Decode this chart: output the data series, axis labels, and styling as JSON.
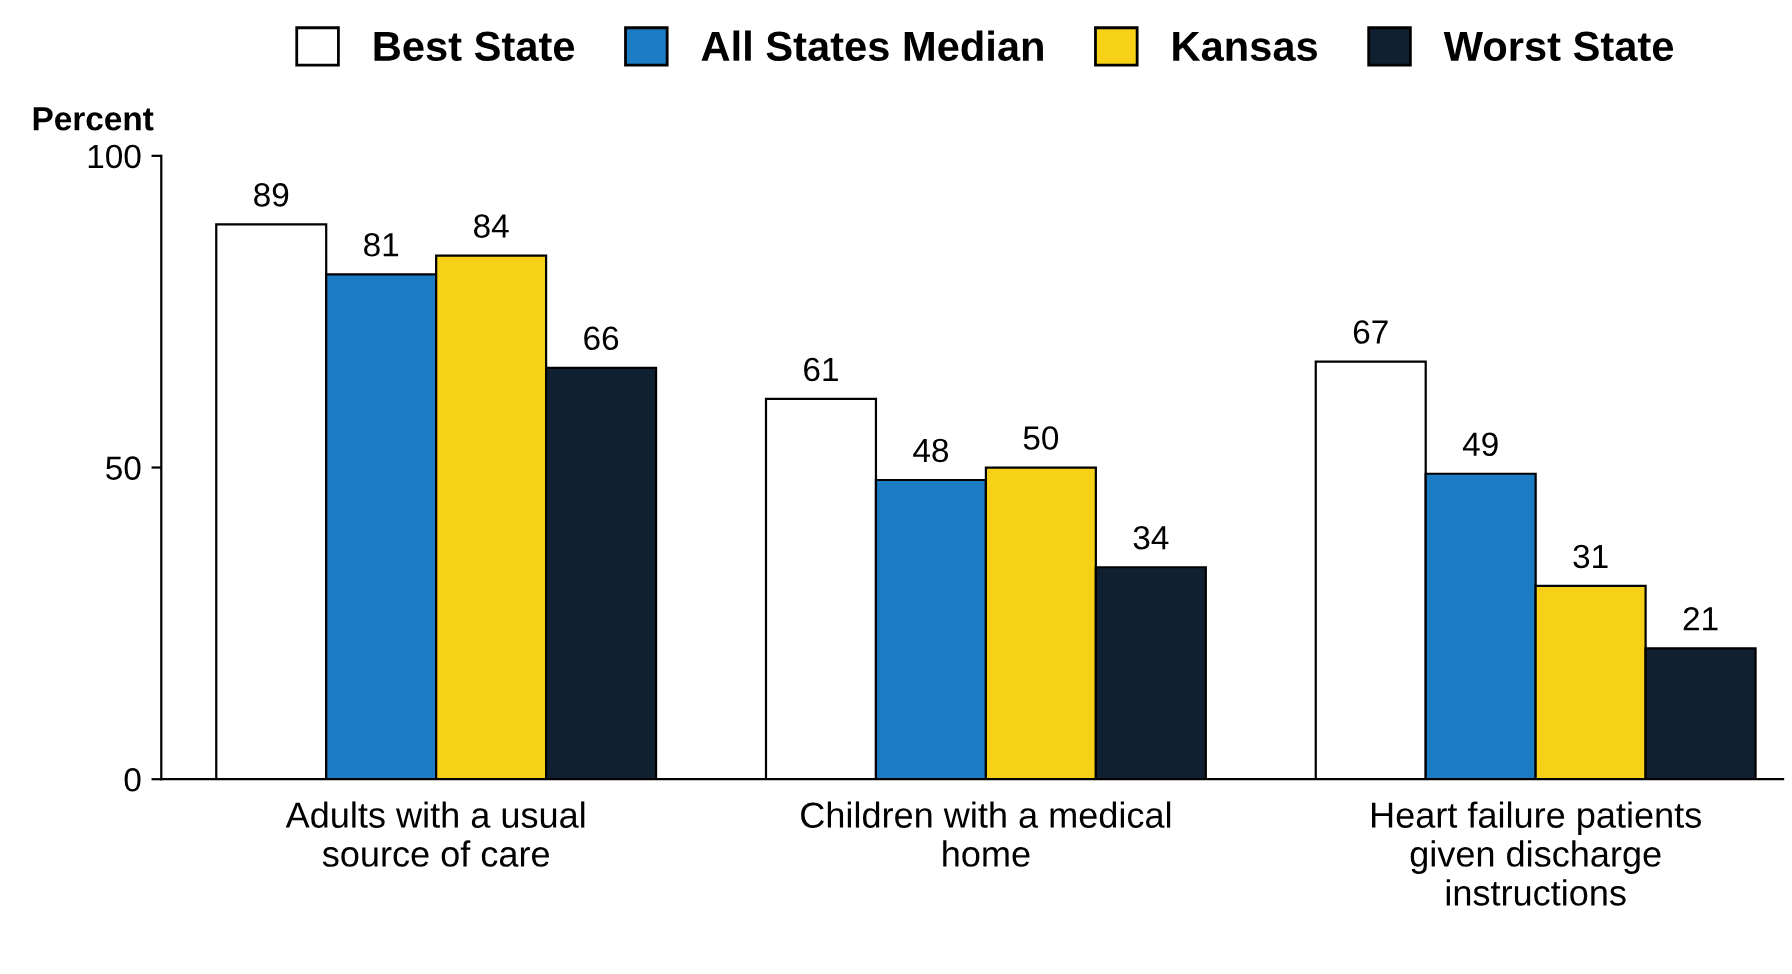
{
  "chart_data": {
    "type": "bar",
    "ylabel": "Percent",
    "categories": [
      "Adults with a usual\nsource of care",
      "Children with a medical\nhome",
      "Heart failure patients\ngiven discharge\ninstructions"
    ],
    "series": [
      {
        "name": "Best State",
        "color": "#ffffff",
        "values": [
          89,
          61,
          67
        ]
      },
      {
        "name": "All States Median",
        "color": "#1b7cc4",
        "values": [
          81,
          48,
          49
        ]
      },
      {
        "name": "Kansas",
        "color": "#f7d117",
        "values": [
          84,
          50,
          31
        ]
      },
      {
        "name": "Worst State",
        "color": "#102030",
        "values": [
          66,
          34,
          21
        ]
      }
    ],
    "ylim": [
      0,
      100
    ],
    "yticks": [
      0,
      50,
      100
    ],
    "data_labels": true,
    "legend": "top",
    "grid": false
  }
}
